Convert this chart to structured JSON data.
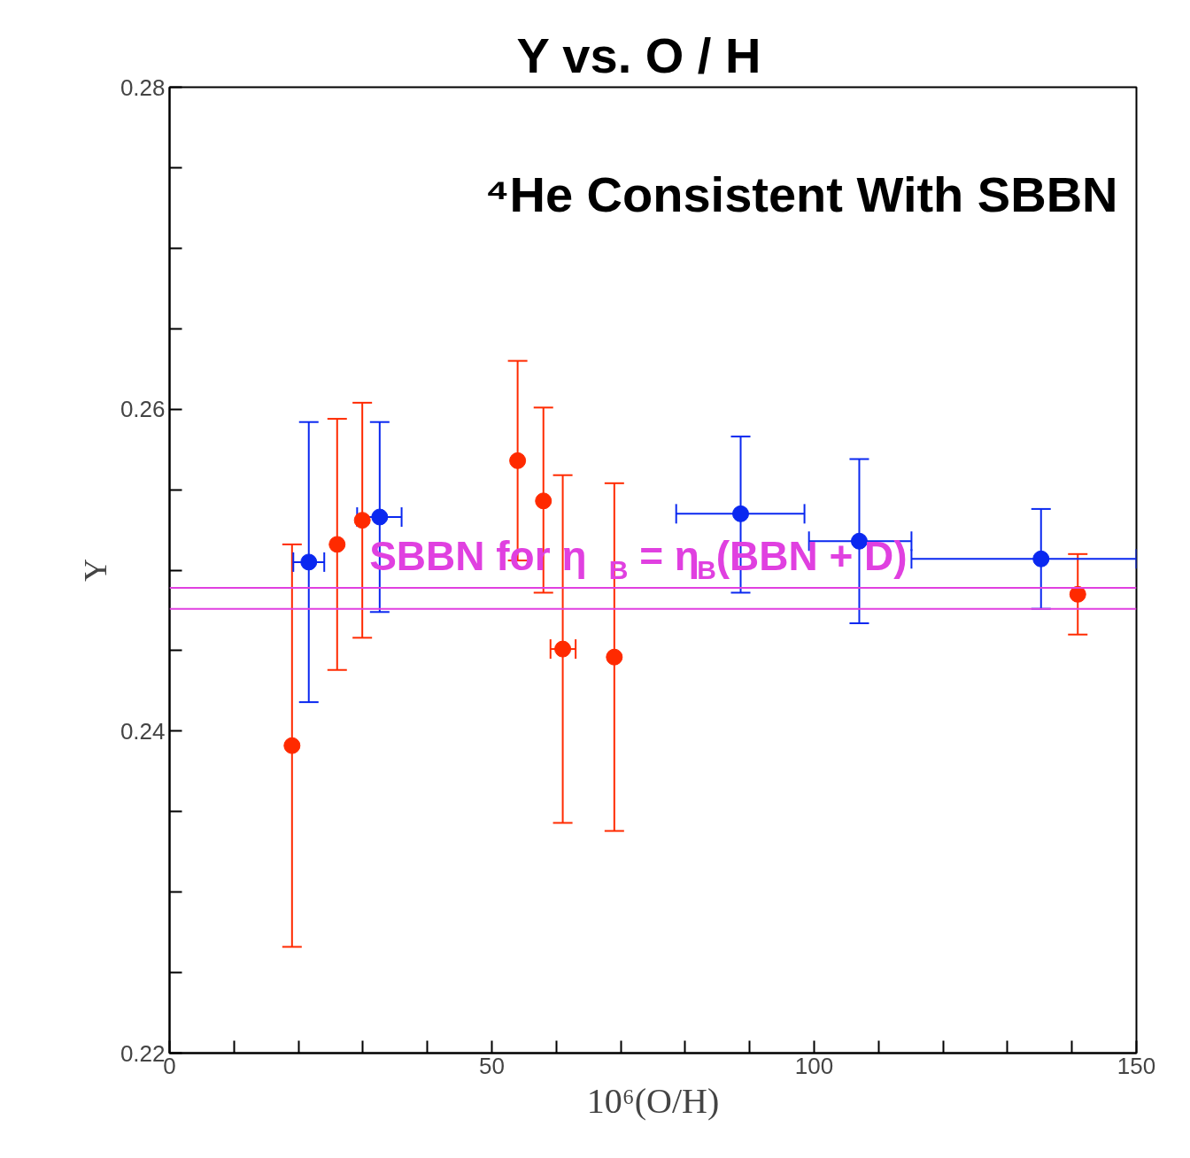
{
  "chart_data": {
    "type": "scatter",
    "title": "Y  vs.  O / H",
    "xlabel": "10⁶(O/H)",
    "ylabel": "Y",
    "xlim": [
      0,
      150
    ],
    "ylim": [
      0.22,
      0.28
    ],
    "xticks": [
      0,
      {
        "value": 10,
        "label": null
      },
      {
        "value": 20,
        "label": null
      },
      {
        "value": 30,
        "label": null
      },
      {
        "value": 40,
        "label": null
      },
      50,
      {
        "value": 60,
        "label": null
      },
      {
        "value": 70,
        "label": null
      },
      {
        "value": 80,
        "label": null
      },
      {
        "value": 90,
        "label": null
      },
      100,
      {
        "value": 110,
        "label": null
      },
      {
        "value": 120,
        "label": null
      },
      {
        "value": 130,
        "label": null
      },
      {
        "value": 140,
        "label": null
      },
      150
    ],
    "yticks": [
      {
        "value": 0.22,
        "label": "0.22"
      },
      {
        "value": 0.225,
        "label": null
      },
      {
        "value": 0.23,
        "label": null
      },
      {
        "value": 0.235,
        "label": null
      },
      {
        "value": 0.24,
        "label": "0.24"
      },
      {
        "value": 0.245,
        "label": null
      },
      {
        "value": 0.25,
        "label": null
      },
      {
        "value": 0.255,
        "label": null
      },
      {
        "value": 0.26,
        "label": "0.26"
      },
      {
        "value": 0.265,
        "label": null
      },
      {
        "value": 0.27,
        "label": null
      },
      {
        "value": 0.275,
        "label": null
      },
      {
        "value": 0.28,
        "label": "0.28"
      }
    ],
    "marker": "circle",
    "grid": false,
    "series": [
      {
        "color": "#ff2a00",
        "x": [
          19.0,
          26.0,
          29.9,
          54.0,
          58.0,
          61.0,
          69.0,
          140.9
        ],
        "values": [
          0.2391,
          0.2516,
          0.2531,
          0.2568,
          0.2543,
          0.2451,
          0.2446,
          0.2485
        ],
        "errors": [
          [
            0.2266,
            0.2516
          ],
          [
            0.2438,
            0.2594
          ],
          [
            0.2458,
            0.2604
          ],
          [
            0.2506,
            0.263
          ],
          [
            0.2486,
            0.2601
          ],
          [
            0.2343,
            0.2559
          ],
          [
            0.2338,
            0.2554
          ],
          [
            0.246,
            0.251
          ]
        ],
        "xerrors": [
          null,
          null,
          null,
          null,
          null,
          [
            59.1,
            63.0
          ],
          null,
          null
        ]
      },
      {
        "color": "#0a28f0",
        "x": [
          21.6,
          32.6,
          88.6,
          107.0,
          135.2
        ],
        "values": [
          0.2505,
          0.2533,
          0.2535,
          0.2518,
          0.2507
        ],
        "errors": [
          [
            0.2418,
            0.2592
          ],
          [
            0.2474,
            0.2592
          ],
          [
            0.2486,
            0.2583
          ],
          [
            0.2467,
            0.2569
          ],
          [
            0.2476,
            0.2538
          ]
        ],
        "xerrors": [
          [
            19.2,
            24.0
          ],
          [
            29.1,
            36.0
          ],
          [
            78.6,
            98.5
          ],
          [
            99.2,
            115.1
          ],
          [
            115.1,
            150
          ]
        ]
      }
    ],
    "ref_lines": [
      {
        "axis": "y",
        "value": 0.2489,
        "color": "#e040e0",
        "label": "SBBN  for  η$_{B}$ = η$_{B}$(BBN + D)"
      },
      {
        "axis": "y",
        "value": 0.2476,
        "color": "#e040e0"
      }
    ],
    "annotations": [
      "⁴He  Consistent  With  SBBN"
    ]
  }
}
